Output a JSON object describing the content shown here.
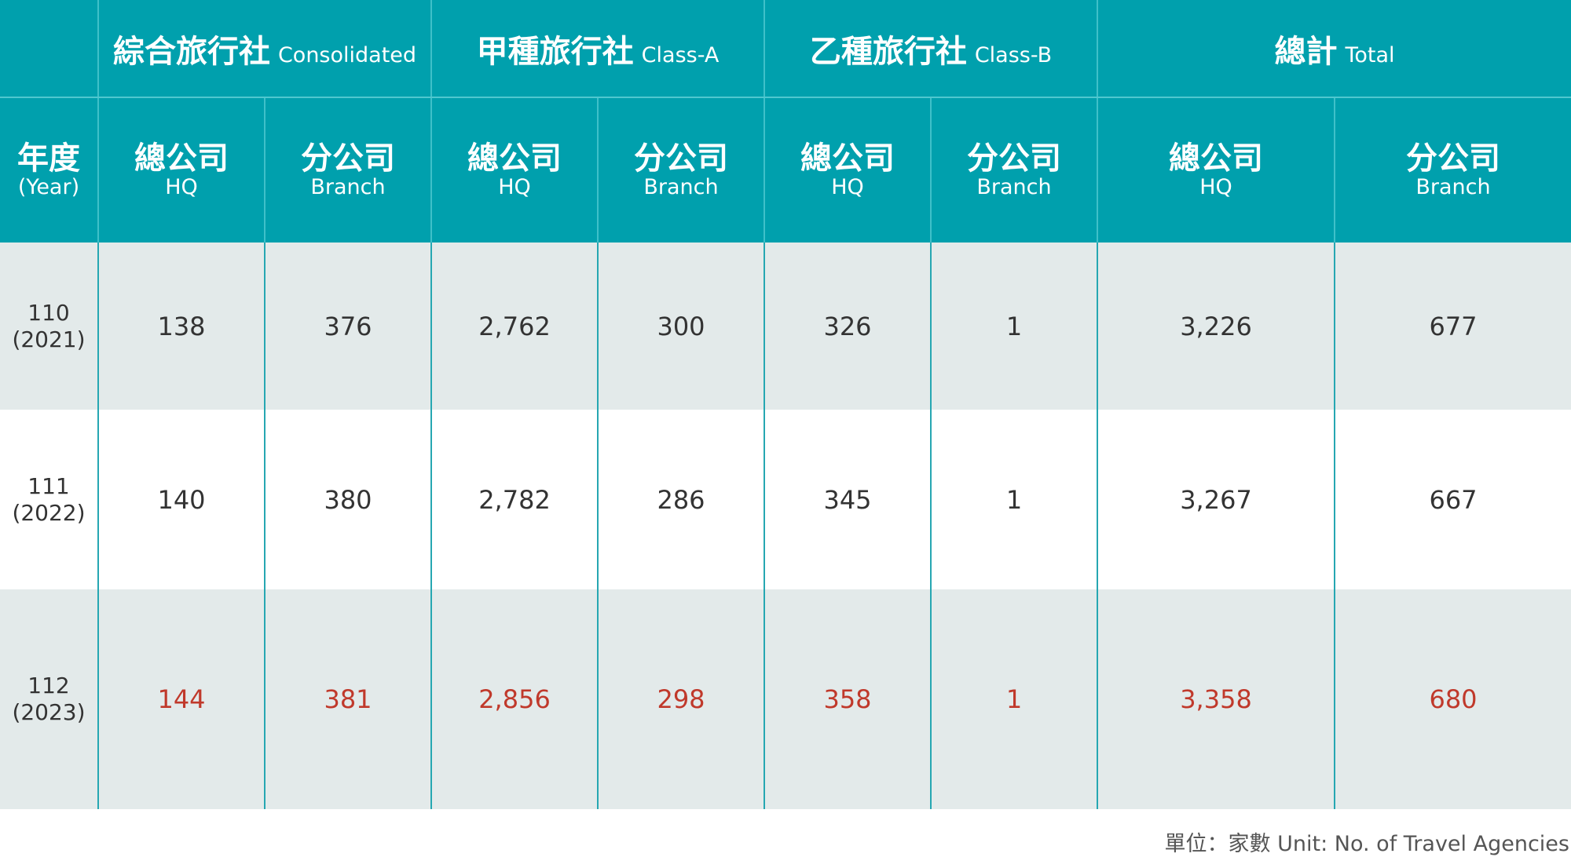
{
  "chart_data": {
    "type": "table",
    "header": {
      "year_zh": "年度",
      "year_en": "(Year)",
      "groups": [
        {
          "zh": "綜合旅行社",
          "en": "Consolidated"
        },
        {
          "zh": "甲種旅行社",
          "en": "Class-A"
        },
        {
          "zh": "乙種旅行社",
          "en": "Class-B"
        },
        {
          "zh": "總計",
          "en": "Total"
        }
      ],
      "sub": [
        {
          "zh": "總公司",
          "en": "HQ"
        },
        {
          "zh": "分公司",
          "en": "Branch"
        }
      ]
    },
    "rows": [
      {
        "year": "110",
        "year_ad": "(2021)",
        "values": [
          "138",
          "376",
          "2,762",
          "300",
          "326",
          "1",
          "3,226",
          "677"
        ]
      },
      {
        "year": "111",
        "year_ad": "(2022)",
        "values": [
          "140",
          "380",
          "2,782",
          "286",
          "345",
          "1",
          "3,267",
          "667"
        ]
      },
      {
        "year": "112",
        "year_ad": "(2023)",
        "values": [
          "144",
          "381",
          "2,856",
          "298",
          "358",
          "1",
          "3,358",
          "680"
        ]
      }
    ],
    "highlight_row": 2,
    "highlight_color": "#c0392b",
    "header_color": "#00a0ad",
    "footnote": "單位：家數 Unit: No. of Travel Agencies"
  }
}
